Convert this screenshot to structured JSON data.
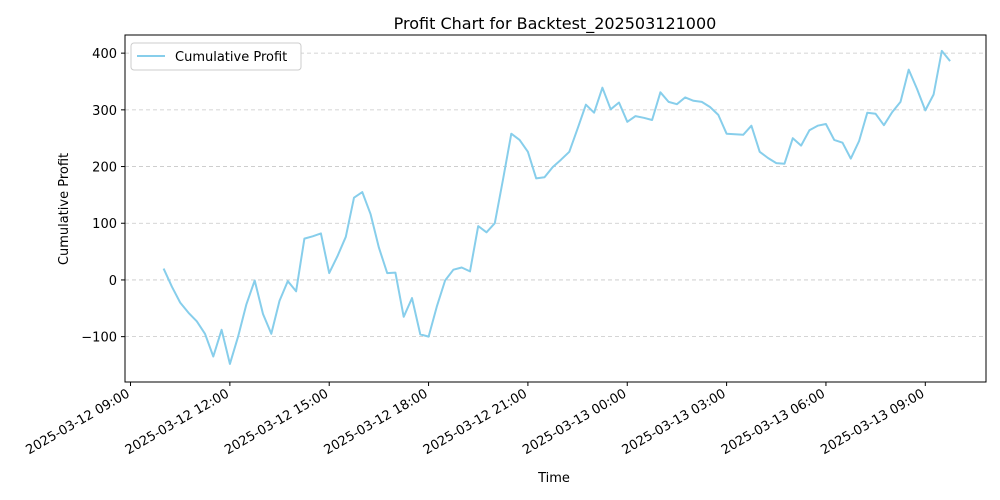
{
  "chart_data": {
    "type": "line",
    "title": "Profit Chart for Backtest_202503121000",
    "xlabel": "Time",
    "ylabel": "Cumulative Profit",
    "grid": "y-dashed",
    "legend_position": "top-left",
    "line_color": "#87CEEB",
    "xlim": [
      "2025-03-12 08:50",
      "2025-03-13 10:50"
    ],
    "ylim": [
      -180,
      432
    ],
    "x_ticks": [
      "2025-03-12 09:00",
      "2025-03-12 12:00",
      "2025-03-12 15:00",
      "2025-03-12 18:00",
      "2025-03-12 21:00",
      "2025-03-13 00:00",
      "2025-03-13 03:00",
      "2025-03-13 06:00",
      "2025-03-13 09:00"
    ],
    "x_tick_labels": [
      "2025-03-12 09:00",
      "2025-03-12 12:00",
      "2025-03-12 15:00",
      "2025-03-12 18:00",
      "2025-03-12 21:00",
      "2025-03-13 00:00",
      "2025-03-13 03:00",
      "2025-03-13 06:00",
      "2025-03-13 09:00"
    ],
    "y_ticks": [
      -100,
      0,
      100,
      200,
      300,
      400
    ],
    "y_tick_labels": [
      "−100",
      "0",
      "100",
      "200",
      "300",
      "400"
    ],
    "series": [
      {
        "name": "Cumulative Profit",
        "x": [
          "2025-03-12 10:00",
          "2025-03-12 10:15",
          "2025-03-12 10:30",
          "2025-03-12 10:45",
          "2025-03-12 11:00",
          "2025-03-12 11:15",
          "2025-03-12 11:30",
          "2025-03-12 11:45",
          "2025-03-12 12:00",
          "2025-03-12 12:15",
          "2025-03-12 12:30",
          "2025-03-12 12:45",
          "2025-03-12 13:00",
          "2025-03-12 13:15",
          "2025-03-12 13:30",
          "2025-03-12 13:45",
          "2025-03-12 14:00",
          "2025-03-12 14:15",
          "2025-03-12 14:30",
          "2025-03-12 14:45",
          "2025-03-12 15:00",
          "2025-03-12 15:15",
          "2025-03-12 15:30",
          "2025-03-12 15:45",
          "2025-03-12 16:00",
          "2025-03-12 16:15",
          "2025-03-12 16:30",
          "2025-03-12 16:45",
          "2025-03-12 17:00",
          "2025-03-12 17:15",
          "2025-03-12 17:30",
          "2025-03-12 17:45",
          "2025-03-12 18:00",
          "2025-03-12 18:15",
          "2025-03-12 18:30",
          "2025-03-12 18:45",
          "2025-03-12 19:00",
          "2025-03-12 19:15",
          "2025-03-12 19:30",
          "2025-03-12 19:45",
          "2025-03-12 20:00",
          "2025-03-12 20:15",
          "2025-03-12 20:30",
          "2025-03-12 20:45",
          "2025-03-12 21:00",
          "2025-03-12 21:15",
          "2025-03-12 21:30",
          "2025-03-12 21:45",
          "2025-03-12 22:00",
          "2025-03-12 22:15",
          "2025-03-12 22:30",
          "2025-03-12 22:45",
          "2025-03-12 23:00",
          "2025-03-12 23:15",
          "2025-03-12 23:30",
          "2025-03-12 23:45",
          "2025-03-13 00:00",
          "2025-03-13 00:15",
          "2025-03-13 00:30",
          "2025-03-13 00:45",
          "2025-03-13 01:00",
          "2025-03-13 01:15",
          "2025-03-13 01:30",
          "2025-03-13 01:45",
          "2025-03-13 02:00",
          "2025-03-13 02:15",
          "2025-03-13 02:30",
          "2025-03-13 02:45",
          "2025-03-13 03:00",
          "2025-03-13 03:30",
          "2025-03-13 03:45",
          "2025-03-13 04:00",
          "2025-03-13 04:15",
          "2025-03-13 04:30",
          "2025-03-13 04:45",
          "2025-03-13 05:00",
          "2025-03-13 05:15",
          "2025-03-13 05:30",
          "2025-03-13 05:45",
          "2025-03-13 06:00",
          "2025-03-13 06:15",
          "2025-03-13 06:30",
          "2025-03-13 06:45",
          "2025-03-13 07:00",
          "2025-03-13 07:15",
          "2025-03-13 07:30",
          "2025-03-13 07:45",
          "2025-03-13 08:00",
          "2025-03-13 08:15",
          "2025-03-13 08:30",
          "2025-03-13 08:45",
          "2025-03-13 09:00",
          "2025-03-13 09:15",
          "2025-03-13 09:30",
          "2025-03-13 09:45"
        ],
        "y": [
          20,
          -12,
          -40,
          -58,
          -73,
          -95,
          -135,
          -88,
          -148,
          -100,
          -43,
          -1,
          -60,
          -95,
          -37,
          -2,
          -20,
          73,
          77,
          82,
          12,
          42,
          76,
          145,
          155,
          116,
          57,
          12,
          13,
          -65,
          -32,
          -96,
          -100,
          -47,
          -1,
          18,
          22,
          15,
          95,
          84,
          100,
          178,
          258,
          247,
          226,
          179,
          181,
          199,
          212,
          226,
          267,
          309,
          295,
          339,
          301,
          313,
          279,
          289,
          286,
          282,
          331,
          314,
          310,
          322,
          316,
          314,
          305,
          291,
          258,
          256,
          272,
          226,
          215,
          206,
          205,
          250,
          237,
          264,
          272,
          275,
          247,
          242,
          214,
          245,
          295,
          293,
          273,
          296,
          314,
          371,
          337,
          299,
          327,
          404,
          386
        ]
      }
    ]
  }
}
